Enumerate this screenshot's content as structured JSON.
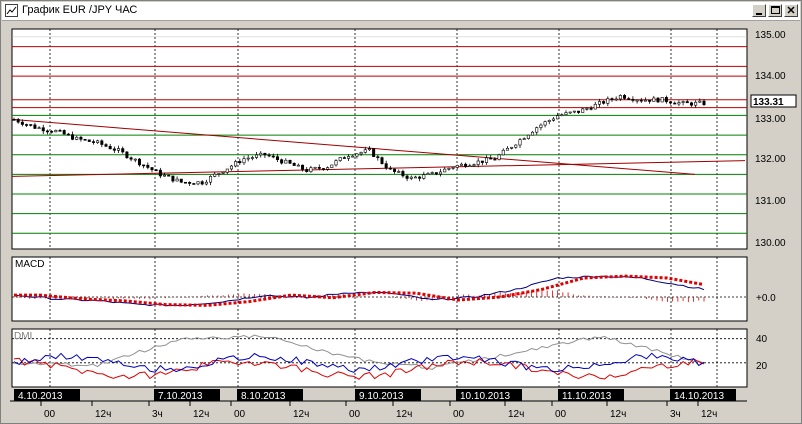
{
  "window": {
    "title": "График EUR /JPY  ЧАС",
    "controls": {
      "minimize": "minimize",
      "maximize": "maximize",
      "close": "close"
    }
  },
  "price_panel": {
    "current_price": "133.31",
    "tick_labels": [
      "135.00",
      "134.00",
      "133.00",
      "132.00",
      "131.00",
      "130.00"
    ]
  },
  "macd_panel": {
    "label": "MACD",
    "zero_label": "+0.0"
  },
  "dmi_panel": {
    "label": "DMI",
    "tick_labels": [
      "40",
      "20"
    ]
  },
  "time_axis": {
    "dates": [
      "4.10.2013",
      "7.10.2013",
      "8.10.2013",
      "9.10.2013",
      "10.10.2013",
      "11.10.2013",
      "14.10.2013"
    ],
    "hours": [
      "00",
      "12ч",
      "3ч",
      "12ч",
      "00",
      "12ч",
      "00",
      "12ч",
      "00",
      "12ч",
      "00",
      "12ч",
      "3ч",
      "12ч"
    ]
  },
  "colors": {
    "resistance": "#c00000",
    "support": "#008000",
    "grid": "#000000",
    "macd_line": "#000080",
    "macd_signal": "#e00000",
    "dmi_plus": "#0000c0",
    "dmi_minus": "#e00000",
    "adx": "#909090"
  },
  "chart_data": [
    {
      "type": "line",
      "name": "candles",
      "x": [
        0,
        4,
        8,
        12,
        16,
        20,
        24,
        28,
        32,
        36,
        40,
        44,
        48,
        52,
        56,
        60,
        64,
        68,
        72,
        76,
        80,
        84,
        88,
        92,
        96,
        100,
        104,
        108,
        112,
        116,
        120,
        124,
        128,
        132
      ],
      "y": [
        132.9,
        132.7,
        132.6,
        132.4,
        132.3,
        132.1,
        131.8,
        131.5,
        131.3,
        131.3,
        131.6,
        131.9,
        132.0,
        131.8,
        131.6,
        131.7,
        132.0,
        132.1,
        131.6,
        131.4,
        131.5,
        131.7,
        131.8,
        131.9,
        132.3,
        132.7,
        133.0,
        133.1,
        133.3,
        133.5,
        133.4,
        133.4,
        133.3,
        133.31
      ],
      "ylim": [
        129.6,
        135.2
      ]
    },
    {
      "type": "line",
      "name": "macd",
      "x": [
        0,
        8,
        16,
        24,
        32,
        40,
        48,
        56,
        64,
        72,
        80,
        88,
        96,
        104,
        112,
        120,
        128,
        132
      ],
      "y": [
        0.05,
        -0.05,
        -0.1,
        -0.2,
        -0.22,
        -0.12,
        0.05,
        -0.02,
        0.12,
        0.1,
        -0.08,
        0.0,
        0.2,
        0.5,
        0.55,
        0.5,
        0.3,
        0.2
      ]
    },
    {
      "type": "line",
      "name": "dmi",
      "x": [
        0,
        16,
        32,
        48,
        64,
        80,
        96,
        112,
        128,
        132
      ],
      "y": [
        20,
        18,
        40,
        42,
        24,
        16,
        28,
        42,
        24,
        20
      ],
      "ylim": [
        0,
        48
      ]
    }
  ]
}
